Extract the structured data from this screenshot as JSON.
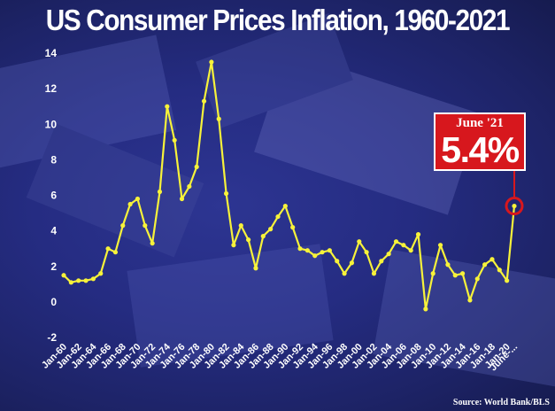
{
  "title": "US Consumer Prices Inflation, 1960-2021",
  "callout": {
    "label": "June '21",
    "value": "5.4%"
  },
  "source": "Source: World Bank/BLS",
  "colors": {
    "line": "#f7f23a",
    "callout_bg": "#d7171d",
    "marker_ring": "#d7171d",
    "text": "#ffffff"
  },
  "chart_data": {
    "type": "line",
    "title": "US Consumer Prices Inflation, 1960-2021",
    "xlabel": "",
    "ylabel": "",
    "ylim": [
      -2,
      14
    ],
    "yticks": [
      -2,
      0,
      2,
      4,
      6,
      8,
      10,
      12,
      14
    ],
    "grid": false,
    "x_tick_labels": [
      "Jan-60",
      "Jan-62",
      "Jan-64",
      "Jan-66",
      "Jan-68",
      "Jan-70",
      "Jan-72",
      "Jan-74",
      "Jan-76",
      "Jan-78",
      "Jan-80",
      "Jan-82",
      "Jan-84",
      "Jan-86",
      "Jan-88",
      "Jan-90",
      "Jan-92",
      "Jan-94",
      "Jan-96",
      "Jan-98",
      "Jan-00",
      "Jan-02",
      "Jan-04",
      "Jan-06",
      "Jan-08",
      "Jan-10",
      "Jan-12",
      "Jan-14",
      "Jan-16",
      "Jan-18",
      "Jan-20",
      "June-..."
    ],
    "series": [
      {
        "x": [
          "Jan-60",
          "Jan-61",
          "Jan-62",
          "Jan-63",
          "Jan-64",
          "Jan-65",
          "Jan-66",
          "Jan-67",
          "Jan-68",
          "Jan-69",
          "Jan-70",
          "Jan-71",
          "Jan-72",
          "Jan-73",
          "Jan-74",
          "Jan-75",
          "Jan-76",
          "Jan-77",
          "Jan-78",
          "Jan-79",
          "Jan-80",
          "Jan-81",
          "Jan-82",
          "Jan-83",
          "Jan-84",
          "Jan-85",
          "Jan-86",
          "Jan-87",
          "Jan-88",
          "Jan-89",
          "Jan-90",
          "Jan-91",
          "Jan-92",
          "Jan-93",
          "Jan-94",
          "Jan-95",
          "Jan-96",
          "Jan-97",
          "Jan-98",
          "Jan-99",
          "Jan-00",
          "Jan-01",
          "Jan-02",
          "Jan-03",
          "Jan-04",
          "Jan-05",
          "Jan-06",
          "Jan-07",
          "Jan-08",
          "Jan-09",
          "Jan-10",
          "Jan-11",
          "Jan-12",
          "Jan-13",
          "Jan-14",
          "Jan-15",
          "Jan-16",
          "Jan-17",
          "Jan-18",
          "Jan-19",
          "Jan-20",
          "June-21"
        ],
        "values": [
          1.5,
          1.1,
          1.2,
          1.2,
          1.3,
          1.6,
          3.0,
          2.8,
          4.3,
          5.5,
          5.8,
          4.3,
          3.3,
          6.2,
          11.0,
          9.1,
          5.8,
          6.5,
          7.6,
          11.3,
          13.5,
          10.3,
          6.1,
          3.2,
          4.3,
          3.5,
          1.9,
          3.7,
          4.1,
          4.8,
          5.4,
          4.2,
          3.0,
          2.9,
          2.6,
          2.8,
          2.9,
          2.3,
          1.6,
          2.2,
          3.4,
          2.8,
          1.6,
          2.3,
          2.7,
          3.4,
          3.2,
          2.9,
          3.8,
          -0.4,
          1.6,
          3.2,
          2.1,
          1.5,
          1.6,
          0.1,
          1.3,
          2.1,
          2.4,
          1.8,
          1.2,
          5.4
        ]
      }
    ]
  }
}
